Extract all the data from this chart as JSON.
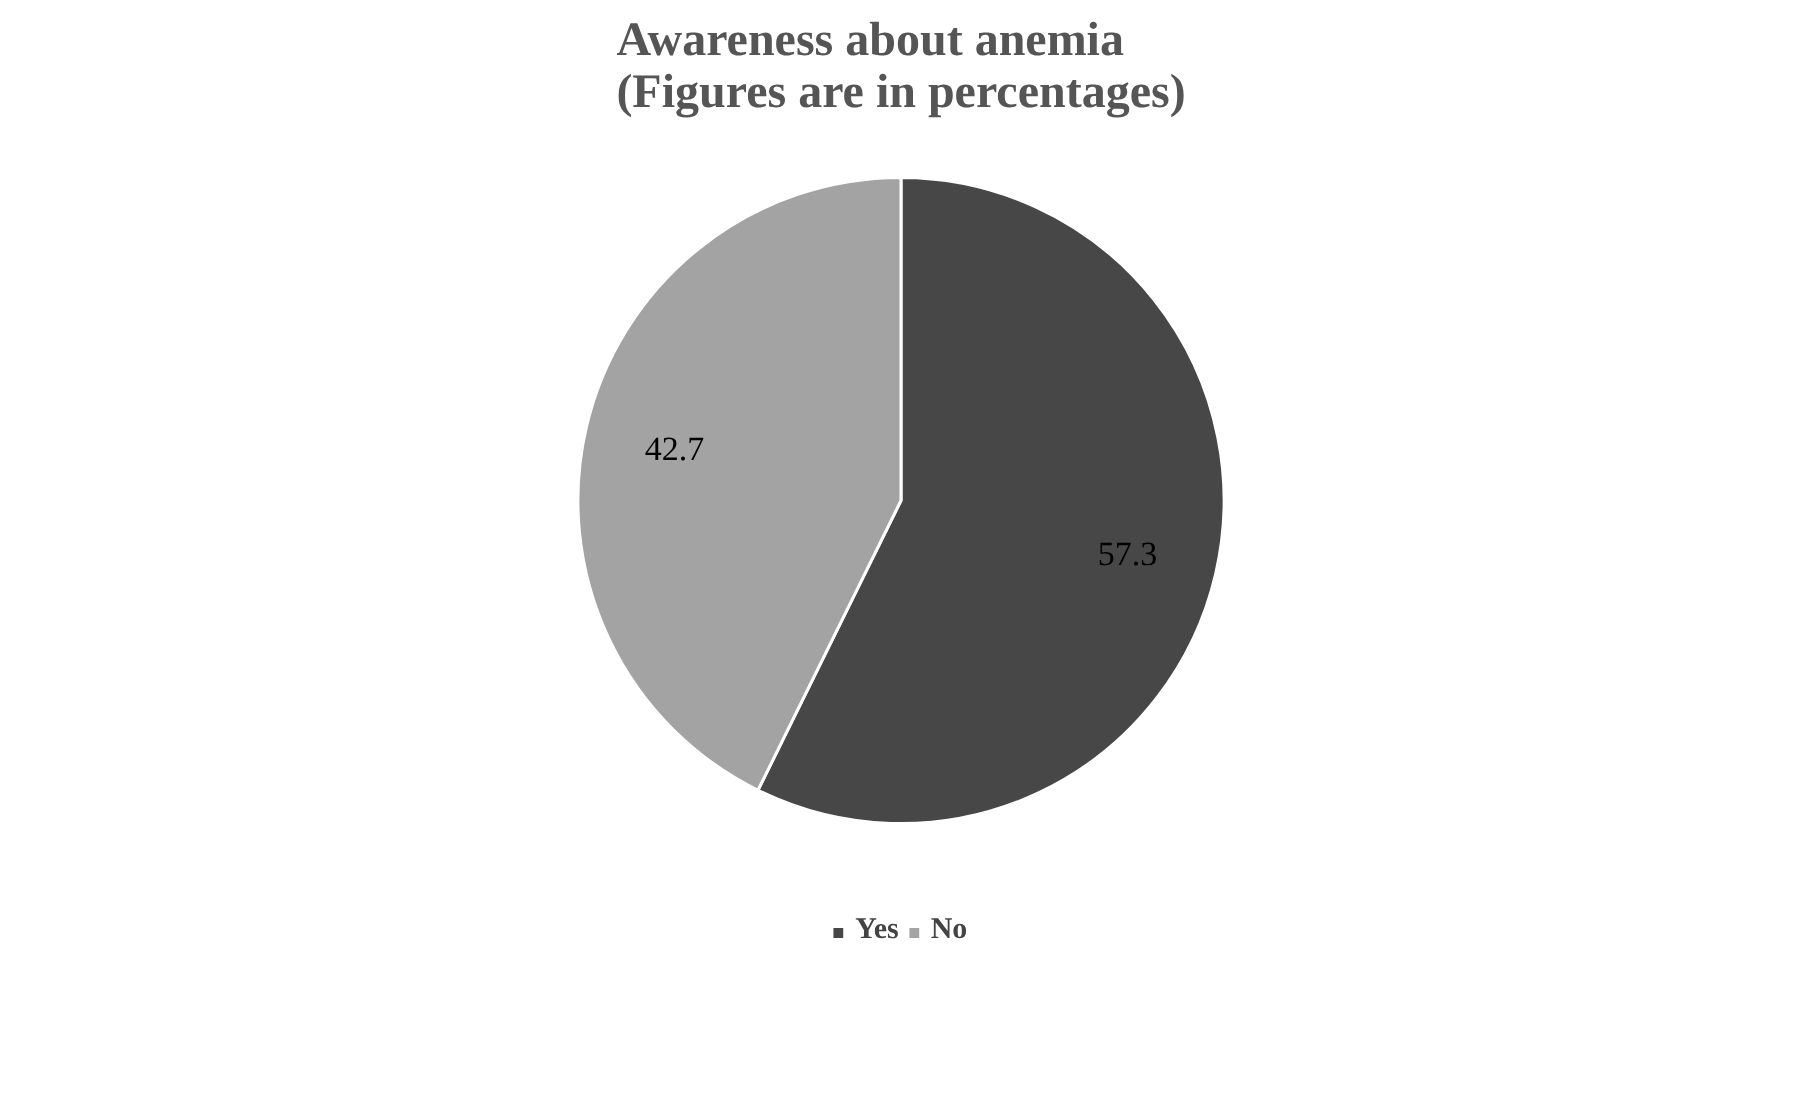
{
  "chart_data": {
    "type": "pie",
    "title": "Awareness about anemia\n(Figures are in percentages)",
    "categories": [
      "Yes",
      "No"
    ],
    "values": [
      57.3,
      42.7
    ],
    "colors": [
      "#474747",
      "#a3a3a3"
    ],
    "data_labels": true,
    "legend": "bottom"
  }
}
